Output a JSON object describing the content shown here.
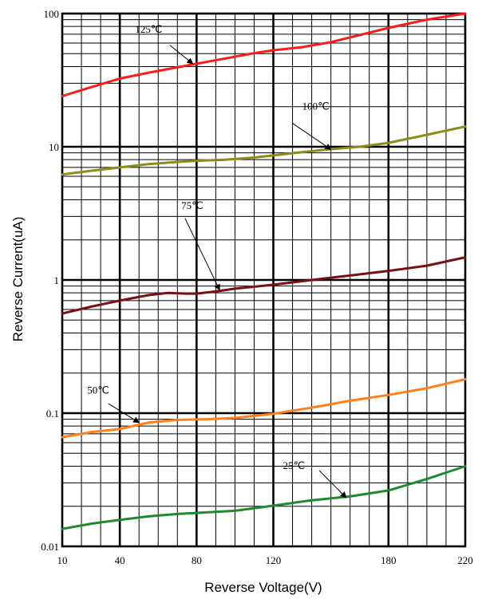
{
  "chart_data": {
    "type": "line",
    "title": "",
    "xlabel": "Reverse Voltage(V)",
    "ylabel": "Reverse Current(uA)",
    "xlim": [
      10,
      220
    ],
    "ylim": [
      0.01,
      100
    ],
    "yscale": "log",
    "grid": true,
    "x_tick_labels": [
      {
        "value": 10,
        "label": "10"
      },
      {
        "value": 40,
        "label": "40"
      },
      {
        "value": 80,
        "label": "80"
      },
      {
        "value": 120,
        "label": "120"
      },
      {
        "value": 180,
        "label": "180"
      },
      {
        "value": 220,
        "label": "220"
      }
    ],
    "y_tick_labels": [
      {
        "value": 0.01,
        "label": "0.01"
      },
      {
        "value": 0.1,
        "label": "0.1"
      },
      {
        "value": 1,
        "label": "1"
      },
      {
        "value": 10,
        "label": "10"
      },
      {
        "value": 100,
        "label": "100"
      }
    ],
    "series": [
      {
        "name": "125℃",
        "color": "#ff1a1a",
        "points": [
          [
            10,
            24
          ],
          [
            25,
            28
          ],
          [
            40,
            32.5
          ],
          [
            55,
            36
          ],
          [
            70,
            39.5
          ],
          [
            80,
            42
          ],
          [
            95,
            46
          ],
          [
            110,
            50.5
          ],
          [
            120,
            53
          ],
          [
            135,
            56
          ],
          [
            150,
            61
          ],
          [
            165,
            69
          ],
          [
            180,
            78
          ],
          [
            200,
            90
          ],
          [
            220,
            100
          ]
        ]
      },
      {
        "name": "100℃",
        "color": "#8c8c1a",
        "points": [
          [
            10,
            6.2
          ],
          [
            25,
            6.6
          ],
          [
            40,
            7.0
          ],
          [
            55,
            7.4
          ],
          [
            70,
            7.7
          ],
          [
            80,
            7.85
          ],
          [
            95,
            8.0
          ],
          [
            110,
            8.3
          ],
          [
            120,
            8.6
          ],
          [
            135,
            9.1
          ],
          [
            150,
            9.6
          ],
          [
            165,
            10.0
          ],
          [
            180,
            10.7
          ],
          [
            200,
            12.3
          ],
          [
            220,
            14.2
          ]
        ]
      },
      {
        "name": "75℃",
        "color": "#7a0f0f",
        "points": [
          [
            10,
            0.56
          ],
          [
            25,
            0.63
          ],
          [
            40,
            0.7
          ],
          [
            55,
            0.77
          ],
          [
            65,
            0.8
          ],
          [
            75,
            0.79
          ],
          [
            80,
            0.79
          ],
          [
            90,
            0.82
          ],
          [
            100,
            0.86
          ],
          [
            120,
            0.92
          ],
          [
            140,
            1.0
          ],
          [
            160,
            1.08
          ],
          [
            180,
            1.17
          ],
          [
            200,
            1.28
          ],
          [
            220,
            1.48
          ]
        ]
      },
      {
        "name": "50℃",
        "color": "#ff7f1a",
        "points": [
          [
            10,
            0.066
          ],
          [
            25,
            0.072
          ],
          [
            40,
            0.076
          ],
          [
            55,
            0.085
          ],
          [
            70,
            0.089
          ],
          [
            85,
            0.09
          ],
          [
            100,
            0.092
          ],
          [
            120,
            0.099
          ],
          [
            140,
            0.11
          ],
          [
            160,
            0.124
          ],
          [
            180,
            0.137
          ],
          [
            200,
            0.154
          ],
          [
            220,
            0.18
          ]
        ]
      },
      {
        "name": "25℃",
        "color": "#1f8a2a",
        "points": [
          [
            10,
            0.0135
          ],
          [
            25,
            0.0148
          ],
          [
            40,
            0.0158
          ],
          [
            55,
            0.0168
          ],
          [
            70,
            0.0175
          ],
          [
            85,
            0.018
          ],
          [
            100,
            0.0185
          ],
          [
            120,
            0.0202
          ],
          [
            140,
            0.0222
          ],
          [
            160,
            0.0237
          ],
          [
            180,
            0.0263
          ],
          [
            200,
            0.032
          ],
          [
            220,
            0.04
          ]
        ]
      }
    ],
    "annotations": [
      {
        "text": "125℃",
        "series": "125℃"
      },
      {
        "text": "100℃",
        "series": "100℃"
      },
      {
        "text": "75℃",
        "series": "75℃"
      },
      {
        "text": "50℃",
        "series": "50℃"
      },
      {
        "text": "25℃",
        "series": "25℃"
      }
    ]
  }
}
